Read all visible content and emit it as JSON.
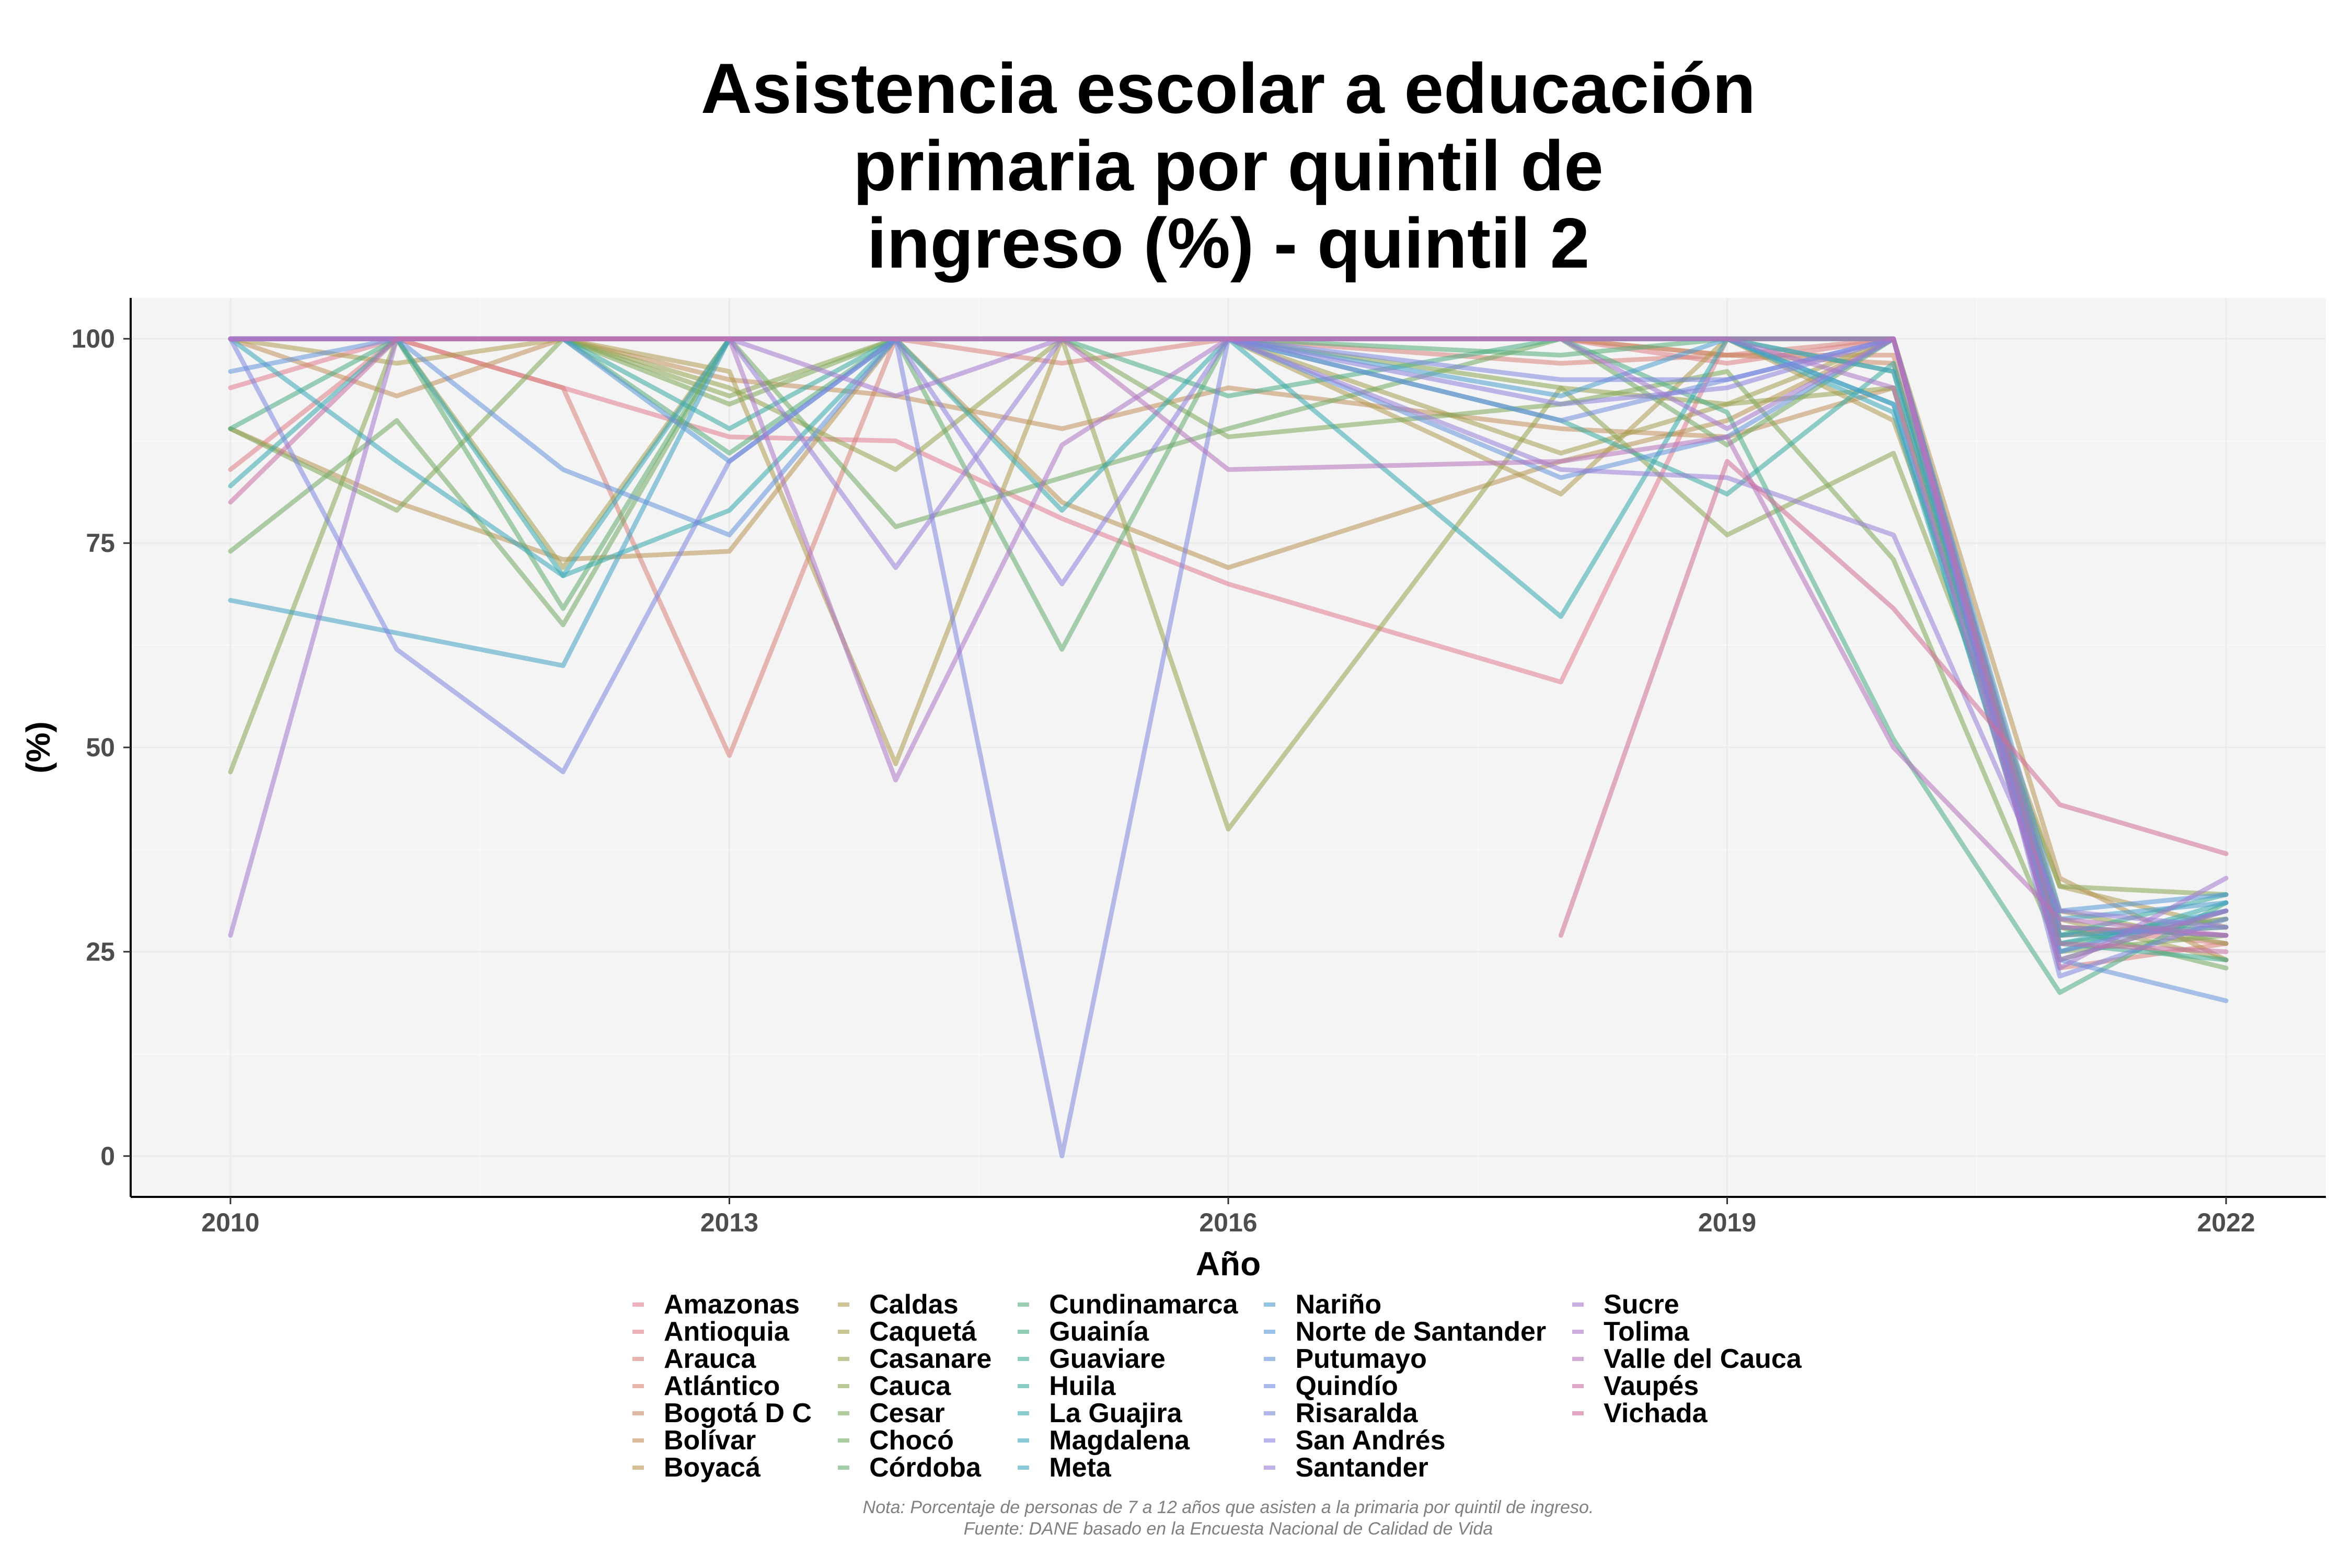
{
  "chart_data": {
    "type": "line",
    "title_lines": [
      "Asistencia escolar a educación",
      "primaria por quintil de",
      "ingreso (%) - quintil 2"
    ],
    "xlabel": "Año",
    "ylabel": "(%)",
    "x_ticks": [
      2010,
      2013,
      2016,
      2019,
      2022
    ],
    "y_ticks": [
      0,
      25,
      50,
      75,
      100
    ],
    "xlim": [
      2009.4,
      2022.6
    ],
    "ylim": [
      -5,
      105
    ],
    "grid": true,
    "legend_position": "bottom",
    "note": "Nota: Porcentaje de personas de 7 a 12 años que asisten a la primaria por quintil de ingreso.",
    "source": "Fuente: DANE basado en la Encuesta Nacional de Calidad de Vida",
    "x": [
      2010,
      2011,
      2012,
      2013,
      2014,
      2015,
      2016,
      2018,
      2019,
      2020,
      2021,
      2022
    ],
    "series": [
      {
        "name": "Amazonas",
        "color": "#E27B8E",
        "values": [
          94,
          100,
          94,
          88,
          87.5,
          78,
          70,
          58,
          100,
          100,
          28,
          27
        ]
      },
      {
        "name": "Antioquia",
        "color": "#DE7E84",
        "values": [
          84,
          100,
          100,
          100,
          100,
          100,
          100,
          100,
          97,
          100,
          28,
          26
        ]
      },
      {
        "name": "Arauca",
        "color": "#D9827A",
        "values": [
          100,
          100,
          94,
          49,
          100,
          97,
          100,
          97,
          98,
          100,
          23,
          26
        ]
      },
      {
        "name": "Atlántico",
        "color": "#D48670",
        "values": [
          100,
          100,
          100,
          100,
          100,
          100,
          100,
          100,
          98,
          98,
          28,
          27
        ]
      },
      {
        "name": "Bogotá D C",
        "color": "#CC8A66",
        "values": [
          100,
          100,
          100,
          100,
          100,
          100,
          100,
          100,
          98,
          97,
          27,
          28
        ]
      },
      {
        "name": "Bolívar",
        "color": "#C38F5C",
        "values": [
          100,
          93,
          100,
          95,
          93,
          89,
          94,
          89,
          88,
          94,
          27,
          29
        ]
      },
      {
        "name": "Boyacá",
        "color": "#B99455",
        "values": [
          89,
          80,
          73,
          74,
          100,
          80,
          72,
          85,
          90,
          100,
          34,
          24
        ]
      },
      {
        "name": "Caldas",
        "color": "#AE9A50",
        "values": [
          100,
          97,
          100,
          96,
          48,
          100,
          100,
          81,
          100,
          90,
          33,
          28
        ]
      },
      {
        "name": "Caquetá",
        "color": "#A39E4E",
        "values": [
          100,
          100,
          72,
          100,
          100,
          100,
          100,
          86,
          92,
          100,
          29,
          24
        ]
      },
      {
        "name": "Casanare",
        "color": "#97A24F",
        "values": [
          100,
          100,
          100,
          94,
          84,
          100,
          40,
          94,
          92,
          94,
          30,
          26
        ]
      },
      {
        "name": "Cauca",
        "color": "#8BA553",
        "values": [
          47,
          100,
          100,
          93,
          100,
          100,
          100,
          94,
          76,
          86,
          33,
          32
        ]
      },
      {
        "name": "Cesar",
        "color": "#7EA85A",
        "values": [
          89,
          79,
          100,
          92,
          100,
          100,
          88,
          92,
          96,
          73,
          25,
          27
        ]
      },
      {
        "name": "Chocó",
        "color": "#71AA63",
        "values": [
          74,
          90,
          65,
          100,
          77,
          83,
          89,
          100,
          87,
          100,
          28,
          23
        ]
      },
      {
        "name": "Córdoba",
        "color": "#63AC6D",
        "values": [
          100,
          100,
          67,
          100,
          100,
          62,
          100,
          100,
          100,
          100,
          24,
          30
        ]
      },
      {
        "name": "Cundinamarca",
        "color": "#56AD79",
        "values": [
          100,
          100,
          100,
          86,
          100,
          100,
          100,
          98,
          100,
          96,
          26,
          29
        ]
      },
      {
        "name": "Guainía",
        "color": "#4AAD85",
        "values": [
          89,
          100,
          100,
          100,
          100,
          100,
          93,
          100,
          91,
          51,
          20,
          31
        ]
      },
      {
        "name": "Guaviare",
        "color": "#40AD92",
        "values": [
          100,
          100,
          100,
          100,
          100,
          100,
          100,
          100,
          100,
          100,
          26,
          24
        ]
      },
      {
        "name": "Huila",
        "color": "#39ACA0",
        "values": [
          100,
          100,
          100,
          89,
          100,
          100,
          100,
          90,
          81,
          97,
          27,
          32
        ]
      },
      {
        "name": "La Guajira",
        "color": "#37AAAD",
        "values": [
          82,
          100,
          71,
          79,
          100,
          79,
          100,
          66,
          100,
          92,
          25,
          31
        ]
      },
      {
        "name": "Magdalena",
        "color": "#3AA7BA",
        "values": [
          100,
          85,
          71,
          100,
          100,
          100,
          100,
          100,
          100,
          91,
          26,
          30
        ]
      },
      {
        "name": "Meta",
        "color": "#41A3C5",
        "values": [
          68,
          64,
          60,
          100,
          100,
          100,
          100,
          100,
          100,
          96,
          27,
          28
        ]
      },
      {
        "name": "Nariño",
        "color": "#4B9ECF",
        "values": [
          100,
          100,
          100,
          100,
          100,
          100,
          100,
          93,
          100,
          92,
          29,
          31
        ]
      },
      {
        "name": "Norte de Santander",
        "color": "#5799D7",
        "values": [
          100,
          100,
          100,
          85,
          100,
          100,
          100,
          100,
          100,
          100,
          30,
          32
        ]
      },
      {
        "name": "Putumayo",
        "color": "#6493DB",
        "values": [
          96,
          100,
          84,
          76,
          100,
          100,
          100,
          83,
          88,
          100,
          24,
          19
        ]
      },
      {
        "name": "Quindío",
        "color": "#718DDE",
        "values": [
          100,
          100,
          100,
          100,
          100,
          100,
          100,
          90,
          95,
          100,
          25,
          30
        ]
      },
      {
        "name": "Risaralda",
        "color": "#7E87DE",
        "values": [
          100,
          62,
          47,
          85,
          100,
          0,
          100,
          95,
          95,
          100,
          22,
          29
        ]
      },
      {
        "name": "San Andrés",
        "color": "#8B82DB",
        "values": [
          100,
          100,
          100,
          100,
          100,
          70,
          100,
          92,
          94,
          100,
          28,
          27
        ]
      },
      {
        "name": "Santander",
        "color": "#977DD6",
        "values": [
          100,
          100,
          100,
          100,
          72,
          100,
          100,
          84,
          83,
          76,
          30,
          28
        ]
      },
      {
        "name": "Sucre",
        "color": "#A279CF",
        "values": [
          27,
          100,
          100,
          100,
          93,
          100,
          100,
          100,
          89,
          100,
          23,
          34
        ]
      },
      {
        "name": "Tolima",
        "color": "#AC76C6",
        "values": [
          100,
          100,
          100,
          100,
          46,
          87,
          100,
          100,
          100,
          94,
          24,
          30
        ]
      },
      {
        "name": "Valle del Cauca",
        "color": "#B573BB",
        "values": [
          100,
          100,
          100,
          100,
          100,
          100,
          84,
          85,
          88,
          50,
          29,
          27
        ]
      },
      {
        "name": "Vaupés",
        "color": "#C670A5",
        "values": [
          80,
          100,
          100,
          100,
          100,
          100,
          100,
          100,
          100,
          100,
          26,
          25
        ]
      },
      {
        "name": "Vichada",
        "color": "#CF6E98",
        "values": [
          null,
          null,
          null,
          null,
          null,
          null,
          null,
          27,
          85,
          67,
          43,
          37
        ]
      }
    ]
  }
}
